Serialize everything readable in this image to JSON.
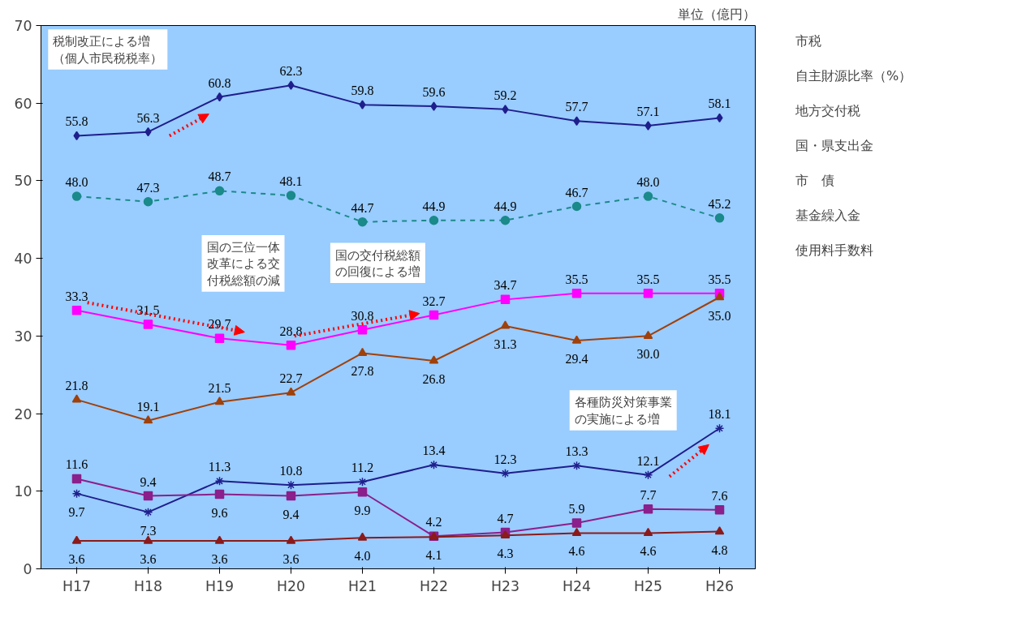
{
  "chart_data": {
    "type": "line",
    "categories": [
      "H17",
      "H18",
      "H19",
      "H20",
      "H21",
      "H22",
      "H23",
      "H24",
      "H25",
      "H26"
    ],
    "ylim": [
      0,
      70
    ],
    "yticks": [
      0,
      10,
      20,
      30,
      40,
      50,
      60,
      70
    ],
    "grid": false,
    "legend": "right",
    "series": [
      {
        "name": "市税",
        "color": "#1f1f8c",
        "marker": "diamond",
        "line_style": "solid",
        "values": [
          55.8,
          56.3,
          60.8,
          62.3,
          59.8,
          59.6,
          59.2,
          57.7,
          57.1,
          58.1
        ],
        "value_labels": [
          "55.8",
          "56.3",
          "60.8",
          "62.3",
          "59.8",
          "59.6",
          "59.2",
          "57.7",
          "57.1",
          "58.1"
        ]
      },
      {
        "name": "自主財源比率（%）",
        "color": "#1a8a8a",
        "marker": "circle",
        "line_style": "dashed",
        "values": [
          48.0,
          47.3,
          48.7,
          48.1,
          44.7,
          44.9,
          44.9,
          46.7,
          48.0,
          45.2
        ],
        "value_labels": [
          "48.0",
          "47.3",
          "48.7",
          "48.1",
          "44.7",
          "44.9",
          "44.9",
          "46.7",
          "48.0",
          "45.2"
        ]
      },
      {
        "name": "地方交付税",
        "color": "#ff00ff",
        "marker": "square",
        "line_style": "solid",
        "values": [
          33.3,
          31.5,
          29.7,
          28.8,
          30.8,
          32.7,
          34.7,
          35.5,
          35.5,
          35.5
        ],
        "value_labels": [
          "33.3",
          "31.5",
          "29.7",
          "28.8",
          "30.8",
          "32.7",
          "34.7",
          "35.5",
          "35.5",
          "35.5"
        ]
      },
      {
        "name": "国・県支出金",
        "color": "#a0400a",
        "marker": "triangle",
        "line_style": "solid",
        "values": [
          21.8,
          19.1,
          21.5,
          22.7,
          27.8,
          26.8,
          31.3,
          29.4,
          30.0,
          35.0
        ],
        "value_labels": [
          "21.8",
          "19.1",
          "21.5",
          "22.7",
          "27.8",
          "26.8",
          "31.3",
          "29.4",
          "30.0",
          "35.0"
        ]
      },
      {
        "name": "市　債",
        "color": "#1f1f8c",
        "marker": "cross",
        "line_style": "solid",
        "values": [
          9.7,
          7.3,
          11.3,
          10.8,
          11.2,
          13.4,
          12.3,
          13.3,
          12.1,
          18.1
        ],
        "value_labels": [
          "9.7",
          "7.3",
          "11.3",
          "10.8",
          "11.2",
          "13.4",
          "12.3",
          "13.3",
          "12.1",
          "18.1"
        ]
      },
      {
        "name": "基金繰入金",
        "color": "#8b1f8b",
        "marker": "square",
        "line_style": "solid",
        "values": [
          11.6,
          9.4,
          9.6,
          9.4,
          9.9,
          4.2,
          4.7,
          5.9,
          7.7,
          7.6
        ],
        "value_labels": [
          "11.6",
          "9.4",
          "9.6",
          "9.4",
          "9.9",
          "4.2",
          "4.7",
          "5.9",
          "7.7",
          "7.6"
        ]
      },
      {
        "name": "使用料手数料",
        "color": "#8b1a1a",
        "marker": "triangle",
        "line_style": "solid",
        "values": [
          3.6,
          3.6,
          3.6,
          3.6,
          4.0,
          4.1,
          4.3,
          4.6,
          4.6,
          4.8
        ],
        "value_labels": [
          "3.6",
          "3.6",
          "3.6",
          "3.6",
          "4.0",
          "4.1",
          "4.3",
          "4.6",
          "4.6",
          "4.8"
        ]
      }
    ],
    "annotations": [
      "単位（億円）",
      "税制改正による増（個人市民税税率）",
      "国の三位一体改革による交付税総額の減",
      "国の交付税総額の回復による増",
      "各種防災対策事業の実施による増"
    ]
  }
}
